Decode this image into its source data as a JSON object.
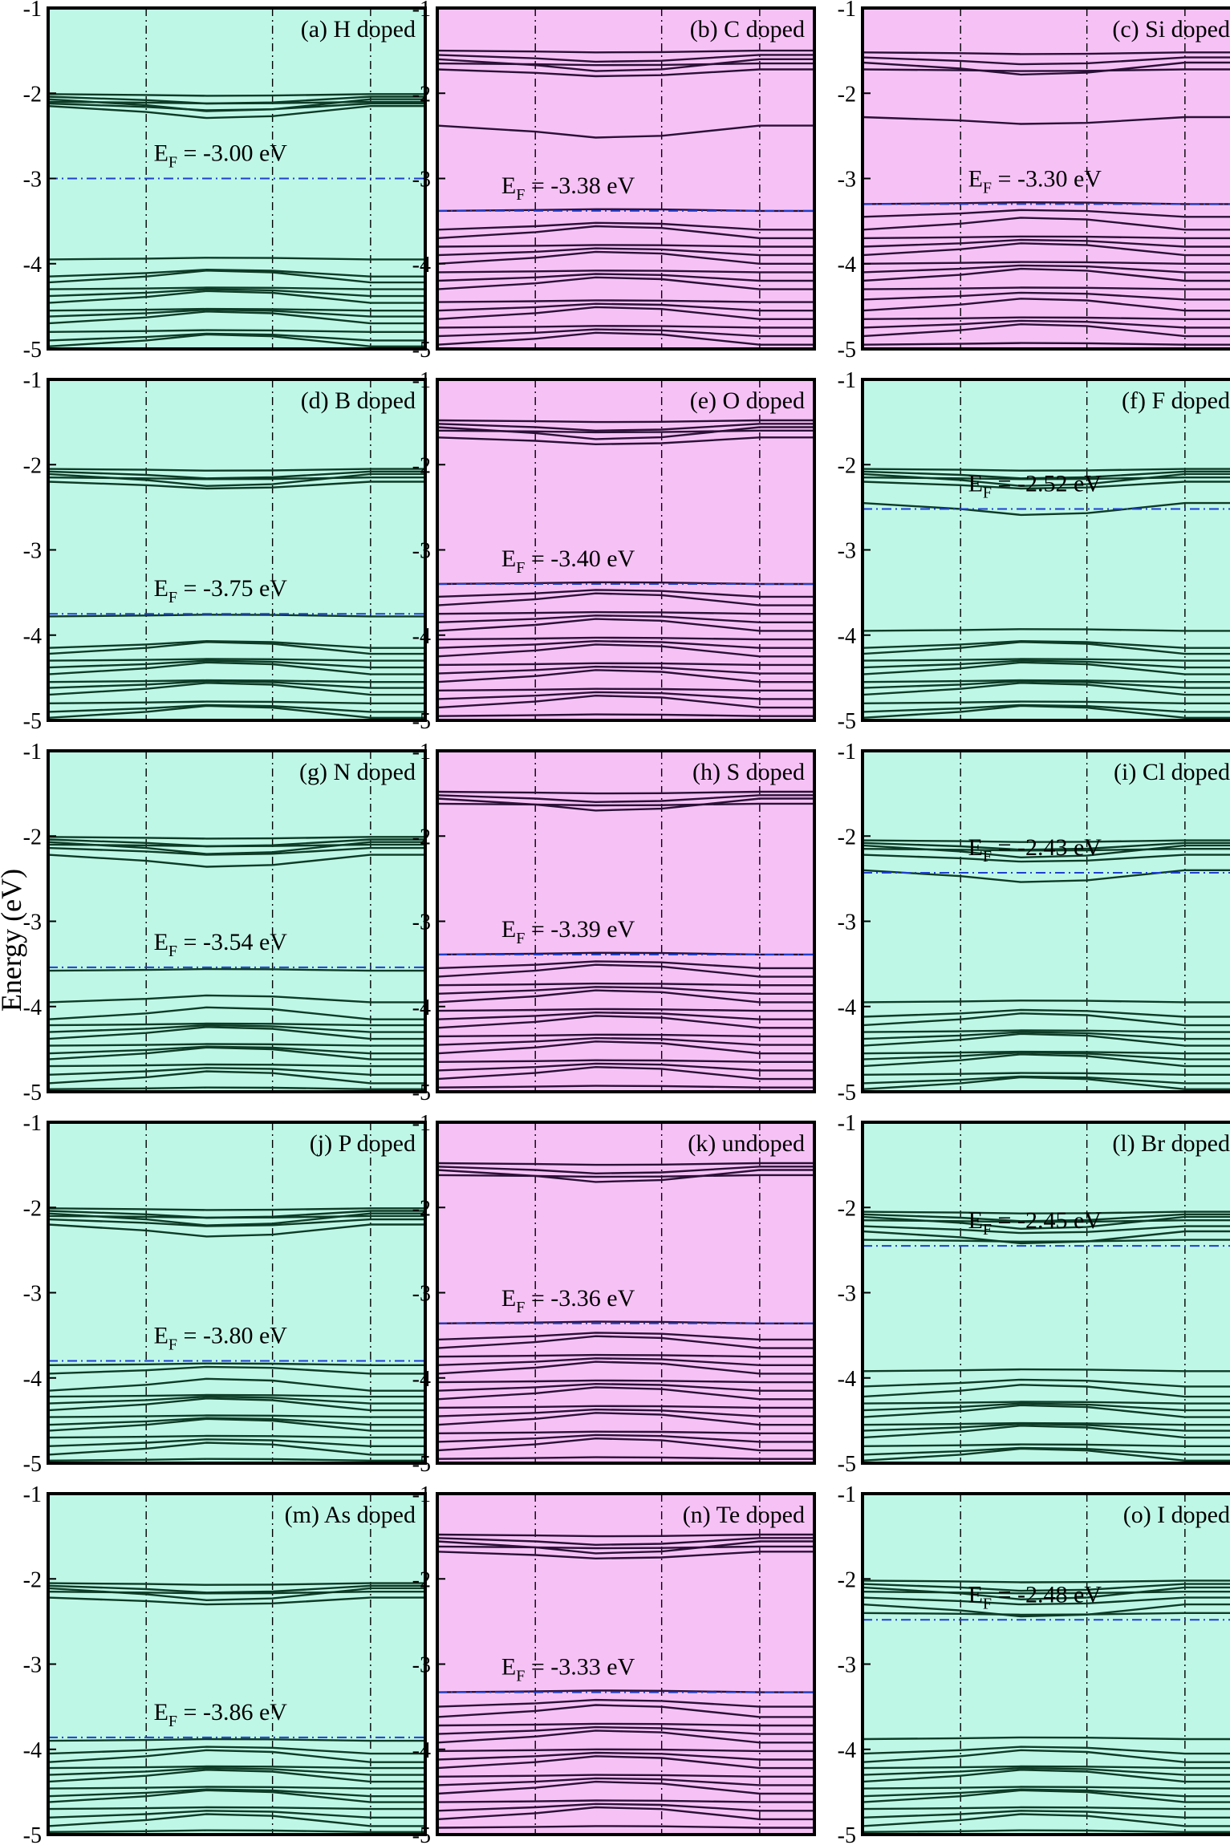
{
  "figure": {
    "ylabel": "Energy (eV)",
    "colors": {
      "cyan_bg": "#bff7e7",
      "magenta_bg": "#f6c2f6",
      "cyan_bands": "#0d3b26",
      "magenta_bands": "#2a1036",
      "fermi": "#1f3fd0",
      "kpath": "#000000"
    }
  },
  "chart_data": [
    {
      "type": "line",
      "panel_label": "(a) H doped",
      "ef_label": "E_F = -3.00 eV",
      "ef": -3.0,
      "ylim": [
        -5,
        -1
      ],
      "yticks": [
        -5,
        -4,
        -3,
        -2,
        -1
      ],
      "background": "cyan",
      "cb_levels": [
        -2.01,
        -2.04,
        -2.07,
        -2.1,
        -2.12,
        -2.15
      ],
      "vb_levels": [
        -3.95,
        -4.15,
        -4.22,
        -4.3,
        -4.38,
        -4.46,
        -4.55,
        -4.62,
        -4.7,
        -4.8,
        -4.9,
        -4.97
      ]
    },
    {
      "type": "line",
      "panel_label": "(b) C doped",
      "ef_label": "E_F = -3.38 eV",
      "ef": -3.38,
      "ylim": [
        -5,
        -1
      ],
      "yticks": [
        -5,
        -4,
        -3,
        -2,
        -1
      ],
      "background": "magenta",
      "cb_levels": [
        -1.5,
        -1.55,
        -1.6,
        -1.65,
        -1.72,
        -2.38
      ],
      "vb_levels": [
        -3.38,
        -3.6,
        -3.7,
        -3.8,
        -3.9,
        -4.0,
        -4.1,
        -4.2,
        -4.3,
        -4.45,
        -4.55,
        -4.65,
        -4.75,
        -4.85,
        -4.95
      ]
    },
    {
      "type": "line",
      "panel_label": "(c) Si doped",
      "ef_label": "E_F = -3.30 eV",
      "ef": -3.3,
      "ylim": [
        -5,
        -1
      ],
      "yticks": [
        -5,
        -4,
        -3,
        -2,
        -1
      ],
      "background": "magenta",
      "cb_levels": [
        -1.52,
        -1.58,
        -1.64,
        -1.72,
        -2.28
      ],
      "vb_levels": [
        -3.3,
        -3.45,
        -3.6,
        -3.7,
        -3.8,
        -3.9,
        -4.0,
        -4.1,
        -4.2,
        -4.3,
        -4.42,
        -4.55,
        -4.65,
        -4.75,
        -4.85,
        -4.95
      ]
    },
    {
      "type": "line",
      "panel_label": "(d) B doped",
      "ef_label": "E_F = -3.75 eV",
      "ef": -3.75,
      "ylim": [
        -5,
        -1
      ],
      "yticks": [
        -5,
        -4,
        -3,
        -2,
        -1
      ],
      "background": "cyan",
      "cb_levels": [
        -2.05,
        -2.08,
        -2.11,
        -2.15,
        -2.2
      ],
      "vb_levels": [
        -3.78,
        -4.15,
        -4.22,
        -4.3,
        -4.38,
        -4.46,
        -4.55,
        -4.62,
        -4.7,
        -4.8,
        -4.9,
        -4.97
      ]
    },
    {
      "type": "line",
      "panel_label": "(e) O doped",
      "ef_label": "E_F = -3.40 eV",
      "ef": -3.4,
      "ylim": [
        -5,
        -1
      ],
      "yticks": [
        -5,
        -4,
        -3,
        -2,
        -1
      ],
      "background": "magenta",
      "cb_levels": [
        -1.48,
        -1.52,
        -1.56,
        -1.6,
        -1.68
      ],
      "vb_levels": [
        -3.4,
        -3.55,
        -3.65,
        -3.75,
        -3.85,
        -3.95,
        -4.05,
        -4.15,
        -4.25,
        -4.35,
        -4.45,
        -4.55,
        -4.65,
        -4.75,
        -4.85,
        -4.95
      ]
    },
    {
      "type": "line",
      "panel_label": "(f) F doped",
      "ef_label": "E_F = -2.52 eV",
      "ef": -2.52,
      "ylim": [
        -5,
        -1
      ],
      "yticks": [
        -5,
        -4,
        -3,
        -2,
        -1
      ],
      "background": "cyan",
      "cb_levels": [
        -2.05,
        -2.08,
        -2.11,
        -2.15,
        -2.2,
        -2.45
      ],
      "vb_levels": [
        -3.95,
        -4.15,
        -4.22,
        -4.3,
        -4.38,
        -4.46,
        -4.55,
        -4.62,
        -4.7,
        -4.8,
        -4.9,
        -4.97
      ]
    },
    {
      "type": "line",
      "panel_label": "(g) N doped",
      "ef_label": "E_F = -3.54 eV",
      "ef": -3.54,
      "ylim": [
        -5,
        -1
      ],
      "yticks": [
        -5,
        -4,
        -3,
        -2,
        -1
      ],
      "background": "cyan",
      "cb_levels": [
        -2.01,
        -2.04,
        -2.07,
        -2.1,
        -2.14,
        -2.22
      ],
      "vb_levels": [
        -3.58,
        -3.95,
        -4.15,
        -4.22,
        -4.3,
        -4.38,
        -4.46,
        -4.55,
        -4.62,
        -4.7,
        -4.8,
        -4.9,
        -4.97
      ]
    },
    {
      "type": "line",
      "panel_label": "(h) S doped",
      "ef_label": "E_F = -3.39 eV",
      "ef": -3.39,
      "ylim": [
        -5,
        -1
      ],
      "yticks": [
        -5,
        -4,
        -3,
        -2,
        -1
      ],
      "background": "magenta",
      "cb_levels": [
        -1.48,
        -1.52,
        -1.56,
        -1.62
      ],
      "vb_levels": [
        -3.39,
        -3.55,
        -3.65,
        -3.75,
        -3.85,
        -3.95,
        -4.05,
        -4.15,
        -4.25,
        -4.35,
        -4.45,
        -4.55,
        -4.65,
        -4.75,
        -4.85,
        -4.95
      ]
    },
    {
      "type": "line",
      "panel_label": "(i) Cl doped",
      "ef_label": "E_F = -2.43 eV",
      "ef": -2.43,
      "ylim": [
        -5,
        -1
      ],
      "yticks": [
        -5,
        -4,
        -3,
        -2,
        -1
      ],
      "background": "cyan",
      "cb_levels": [
        -2.05,
        -2.08,
        -2.11,
        -2.15,
        -2.22,
        -2.4
      ],
      "vb_levels": [
        -3.95,
        -4.12,
        -4.22,
        -4.3,
        -4.38,
        -4.46,
        -4.55,
        -4.62,
        -4.7,
        -4.8,
        -4.9,
        -4.97
      ]
    },
    {
      "type": "line",
      "panel_label": "(j) P doped",
      "ef_label": "E_F = -3.80 eV",
      "ef": -3.8,
      "ylim": [
        -5,
        -1
      ],
      "yticks": [
        -5,
        -4,
        -3,
        -2,
        -1
      ],
      "background": "cyan",
      "cb_levels": [
        -2.01,
        -2.04,
        -2.07,
        -2.1,
        -2.14,
        -2.2
      ],
      "vb_levels": [
        -3.85,
        -3.95,
        -4.15,
        -4.22,
        -4.3,
        -4.38,
        -4.46,
        -4.55,
        -4.62,
        -4.7,
        -4.8,
        -4.9,
        -4.97
      ]
    },
    {
      "type": "line",
      "panel_label": "(k) undoped",
      "ef_label": "E_F = -3.36 eV",
      "ef": -3.36,
      "ylim": [
        -5,
        -1
      ],
      "yticks": [
        -5,
        -4,
        -3,
        -2,
        -1
      ],
      "background": "magenta",
      "cb_levels": [
        -1.48,
        -1.52,
        -1.56,
        -1.62
      ],
      "vb_levels": [
        -3.36,
        -3.55,
        -3.65,
        -3.75,
        -3.85,
        -3.95,
        -4.05,
        -4.15,
        -4.25,
        -4.35,
        -4.45,
        -4.55,
        -4.65,
        -4.75,
        -4.85,
        -4.95
      ]
    },
    {
      "type": "line",
      "panel_label": "(l) Br doped",
      "ef_label": "E_F = -2.45 eV",
      "ef": -2.45,
      "ylim": [
        -5,
        -1
      ],
      "yticks": [
        -5,
        -4,
        -3,
        -2,
        -1
      ],
      "background": "cyan",
      "cb_levels": [
        -2.05,
        -2.08,
        -2.11,
        -2.15,
        -2.22,
        -2.28,
        -2.38
      ],
      "vb_levels": [
        -3.92,
        -4.1,
        -4.22,
        -4.3,
        -4.38,
        -4.46,
        -4.55,
        -4.62,
        -4.7,
        -4.8,
        -4.9,
        -4.97
      ]
    },
    {
      "type": "line",
      "panel_label": "(m) As doped",
      "ef_label": "E_F = -3.86 eV",
      "ef": -3.86,
      "ylim": [
        -5,
        -1
      ],
      "yticks": [
        -5,
        -4,
        -3,
        -2,
        -1
      ],
      "background": "cyan",
      "cb_levels": [
        -2.05,
        -2.08,
        -2.11,
        -2.15,
        -2.22
      ],
      "vb_levels": [
        -3.9,
        -4.05,
        -4.15,
        -4.22,
        -4.3,
        -4.38,
        -4.46,
        -4.55,
        -4.62,
        -4.7,
        -4.8,
        -4.9,
        -4.97
      ]
    },
    {
      "type": "line",
      "panel_label": "(n) Te doped",
      "ef_label": "E_F = -3.33 eV",
      "ef": -3.33,
      "ylim": [
        -5,
        -1
      ],
      "yticks": [
        -5,
        -4,
        -3,
        -2,
        -1
      ],
      "background": "magenta",
      "cb_levels": [
        -1.48,
        -1.52,
        -1.56,
        -1.62,
        -1.68
      ],
      "vb_levels": [
        -3.33,
        -3.5,
        -3.62,
        -3.72,
        -3.82,
        -3.92,
        -4.02,
        -4.12,
        -4.22,
        -4.32,
        -4.42,
        -4.52,
        -4.62,
        -4.72,
        -4.82,
        -4.92
      ]
    },
    {
      "type": "line",
      "panel_label": "(o) I doped",
      "ef_label": "E_F = -2.48 eV",
      "ef": -2.48,
      "ylim": [
        -5,
        -1
      ],
      "yticks": [
        -5,
        -4,
        -3,
        -2,
        -1
      ],
      "background": "cyan",
      "cb_levels": [
        -2.02,
        -2.06,
        -2.1,
        -2.15,
        -2.22,
        -2.3,
        -2.4
      ],
      "vb_levels": [
        -3.88,
        -4.05,
        -4.15,
        -4.22,
        -4.3,
        -4.38,
        -4.46,
        -4.55,
        -4.62,
        -4.7,
        -4.8,
        -4.9,
        -4.97
      ]
    }
  ]
}
